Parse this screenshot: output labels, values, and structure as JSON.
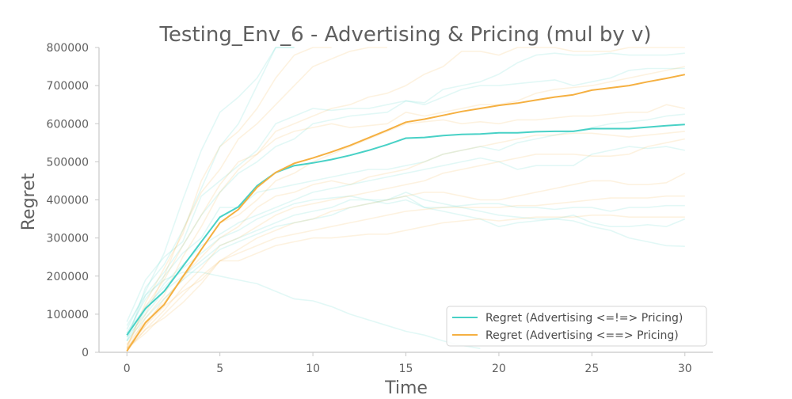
{
  "chart_data": {
    "type": "line",
    "title": "Testing_Env_6 - Advertising & Pricing (mul by v)",
    "xlabel": "Time",
    "ylabel": "Regret",
    "xlim": [
      -1.5,
      31.5
    ],
    "ylim": [
      0,
      800000
    ],
    "xticks": [
      0,
      5,
      10,
      15,
      20,
      25,
      30
    ],
    "yticks": [
      0,
      100000,
      200000,
      300000,
      400000,
      500000,
      600000,
      700000,
      800000
    ],
    "grid": false,
    "legend_position": "lower-right",
    "x": [
      0,
      1,
      2,
      3,
      4,
      5,
      6,
      7,
      8,
      9,
      10,
      11,
      12,
      13,
      14,
      15,
      16,
      17,
      18,
      19,
      20,
      21,
      22,
      23,
      24,
      25,
      26,
      27,
      28,
      29,
      30
    ],
    "series": [
      {
        "name": "Regret (Advertising <=!=> Pricing)",
        "color": "#48d1c6",
        "values": [
          45000,
          115000,
          160000,
          225000,
          290000,
          355000,
          382000,
          437000,
          472000,
          490000,
          497000,
          506000,
          517000,
          530000,
          545000,
          562000,
          564000,
          569000,
          572000,
          573000,
          576000,
          576000,
          579000,
          580000,
          580000,
          587000,
          587000,
          587000,
          591000,
          595000,
          598000
        ]
      },
      {
        "name": "Regret (Advertising <==> Pricing)",
        "color": "#f5b041",
        "values": [
          3000,
          78000,
          125000,
          198000,
          270000,
          340000,
          375000,
          433000,
          472000,
          496000,
          510000,
          526000,
          543000,
          563000,
          583000,
          604000,
          612000,
          622000,
          632000,
          640000,
          648000,
          654000,
          662000,
          670000,
          676000,
          688000,
          694000,
          700000,
          710000,
          719000,
          729000
        ]
      }
    ],
    "background_series": [
      {
        "color": "#48d1c6",
        "values": [
          60000,
          160000,
          260000,
          400000,
          530000,
          630000,
          670000,
          720000,
          800000,
          800000
        ]
      },
      {
        "color": "#48d1c6",
        "values": [
          30000,
          170000,
          230000,
          320000,
          430000,
          540000,
          600000,
          700000,
          800000,
          800000
        ]
      },
      {
        "color": "#48d1c6",
        "values": [
          80000,
          190000,
          250000,
          290000,
          410000,
          450000,
          490000,
          530000,
          600000,
          620000,
          640000,
          635000,
          640000,
          640000,
          650000,
          660000,
          655000,
          690000,
          700000,
          710000,
          730000,
          760000,
          780000,
          785000,
          780000,
          780000,
          785000,
          780000,
          780000,
          780000,
          785000
        ]
      },
      {
        "color": "#48d1c6",
        "values": [
          40000,
          150000,
          210000,
          280000,
          360000,
          420000,
          470000,
          500000,
          540000,
          560000,
          600000,
          610000,
          620000,
          625000,
          630000,
          660000,
          650000,
          670000,
          690000,
          700000,
          700000,
          705000,
          710000,
          715000,
          700000,
          710000,
          720000,
          740000,
          745000,
          745000,
          745000
        ]
      },
      {
        "color": "#48d1c6",
        "values": [
          50000,
          140000,
          200000,
          260000,
          300000,
          380000,
          380000,
          420000,
          430000,
          440000,
          450000,
          460000,
          470000,
          480000,
          480000,
          490000,
          500000,
          520000,
          530000,
          540000,
          530000,
          550000,
          560000,
          570000,
          580000,
          590000,
          600000,
          605000,
          610000,
          620000,
          625000
        ]
      },
      {
        "color": "#48d1c6",
        "values": [
          30000,
          110000,
          180000,
          230000,
          280000,
          310000,
          340000,
          360000,
          380000,
          400000,
          420000,
          430000,
          440000,
          450000,
          460000,
          470000,
          480000,
          490000,
          500000,
          510000,
          500000,
          480000,
          490000,
          490000,
          490000,
          520000,
          530000,
          540000,
          535000,
          540000,
          530000
        ]
      },
      {
        "color": "#48d1c6",
        "values": [
          50000,
          120000,
          170000,
          220000,
          260000,
          300000,
          320000,
          350000,
          370000,
          390000,
          400000,
          405000,
          410000,
          400000,
          400000,
          410000,
          380000,
          380000,
          385000,
          390000,
          390000,
          380000,
          380000,
          375000,
          380000,
          380000,
          370000,
          380000,
          380000,
          385000,
          385000
        ]
      },
      {
        "color": "#48d1c6",
        "values": [
          40000,
          100000,
          160000,
          200000,
          240000,
          280000,
          300000,
          320000,
          340000,
          360000,
          370000,
          380000,
          400000,
          400000,
          390000,
          400000,
          380000,
          370000,
          360000,
          350000,
          330000,
          340000,
          345000,
          350000,
          360000,
          340000,
          330000,
          330000,
          335000,
          330000,
          350000
        ]
      },
      {
        "color": "#48d1c6",
        "values": [
          70000,
          150000,
          190000,
          210000,
          210000,
          200000,
          190000,
          180000,
          160000,
          140000,
          135000,
          120000,
          100000,
          85000,
          70000,
          55000,
          45000,
          30000,
          18000,
          10000
        ]
      },
      {
        "color": "#48d1c6",
        "values": [
          30000,
          90000,
          140000,
          190000,
          230000,
          270000,
          290000,
          310000,
          330000,
          340000,
          350000,
          360000,
          380000,
          390000,
          400000,
          420000,
          400000,
          390000,
          380000,
          370000,
          360000,
          355000,
          350000,
          350000,
          345000,
          330000,
          320000,
          300000,
          290000,
          280000,
          278000
        ]
      },
      {
        "color": "#f5b041",
        "values": [
          10000,
          130000,
          220000,
          310000,
          450000,
          540000,
          580000,
          640000,
          720000,
          780000,
          800000,
          800000
        ]
      },
      {
        "color": "#f5b041",
        "values": [
          20000,
          100000,
          200000,
          320000,
          420000,
          480000,
          560000,
          600000,
          650000,
          700000,
          750000,
          770000,
          790000,
          800000,
          800000
        ]
      },
      {
        "color": "#f5b041",
        "values": [
          15000,
          120000,
          190000,
          280000,
          360000,
          440000,
          500000,
          520000,
          580000,
          600000,
          620000,
          640000,
          650000,
          670000,
          680000,
          700000,
          730000,
          750000,
          790000,
          790000,
          780000,
          800000,
          800000,
          800000,
          790000,
          790000,
          790000,
          800000,
          800000,
          800000,
          800000
        ]
      },
      {
        "color": "#f5b041",
        "values": [
          5000,
          90000,
          150000,
          250000,
          330000,
          420000,
          480000,
          520000,
          560000,
          580000,
          590000,
          600000,
          590000,
          595000,
          600000,
          630000,
          620000,
          630000,
          640000,
          650000,
          650000,
          660000,
          680000,
          690000,
          695000,
          700000,
          710000,
          720000,
          730000,
          740000,
          750000
        ]
      },
      {
        "color": "#f5b041",
        "values": [
          10000,
          70000,
          140000,
          190000,
          270000,
          340000,
          360000,
          400000,
          450000,
          470000,
          500000,
          520000,
          540000,
          560000,
          580000,
          600000,
          605000,
          610000,
          600000,
          605000,
          600000,
          610000,
          610000,
          615000,
          620000,
          620000,
          625000,
          630000,
          630000,
          650000,
          640000
        ]
      },
      {
        "color": "#f5b041",
        "values": [
          20000,
          80000,
          130000,
          200000,
          250000,
          300000,
          330000,
          380000,
          410000,
          420000,
          440000,
          450000,
          440000,
          460000,
          470000,
          480000,
          500000,
          520000,
          530000,
          540000,
          550000,
          560000,
          570000,
          570000,
          575000,
          575000,
          570000,
          565000,
          570000,
          575000,
          580000
        ]
      },
      {
        "color": "#f5b041",
        "values": [
          5000,
          60000,
          110000,
          170000,
          220000,
          280000,
          300000,
          330000,
          360000,
          380000,
          390000,
          400000,
          410000,
          420000,
          430000,
          440000,
          450000,
          470000,
          480000,
          490000,
          500000,
          510000,
          520000,
          520000,
          520000,
          515000,
          515000,
          520000,
          540000,
          550000,
          560000
        ]
      },
      {
        "color": "#f5b041",
        "values": [
          10000,
          50000,
          100000,
          150000,
          200000,
          240000,
          270000,
          300000,
          320000,
          340000,
          350000,
          370000,
          380000,
          390000,
          400000,
          410000,
          420000,
          420000,
          410000,
          400000,
          400000,
          410000,
          420000,
          430000,
          440000,
          450000,
          450000,
          440000,
          440000,
          445000,
          470000
        ]
      },
      {
        "color": "#f5b041",
        "values": [
          8000,
          60000,
          90000,
          130000,
          180000,
          240000,
          260000,
          280000,
          300000,
          310000,
          320000,
          330000,
          340000,
          350000,
          360000,
          370000,
          375000,
          380000,
          380000,
          380000,
          380000,
          385000,
          385000,
          390000,
          395000,
          400000,
          405000,
          405000,
          405000,
          410000,
          410000
        ]
      },
      {
        "color": "#f5b041",
        "values": [
          12000,
          70000,
          120000,
          160000,
          190000,
          240000,
          240000,
          260000,
          280000,
          290000,
          300000,
          300000,
          305000,
          310000,
          310000,
          320000,
          330000,
          340000,
          345000,
          350000,
          345000,
          350000,
          355000,
          355000,
          355000,
          360000,
          360000,
          355000,
          355000,
          355000,
          355000
        ]
      }
    ]
  }
}
